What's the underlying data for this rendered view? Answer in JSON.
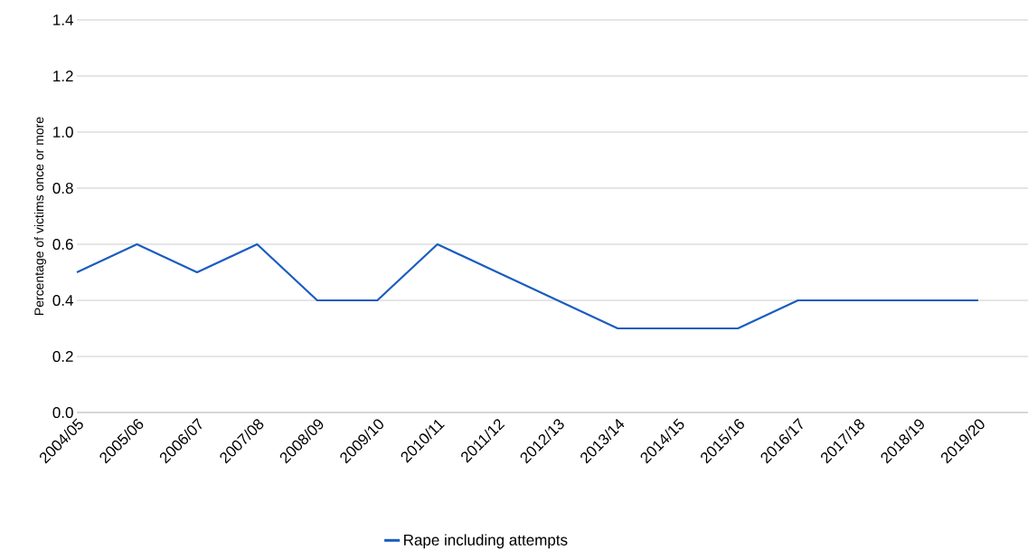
{
  "chart_data": {
    "type": "line",
    "ylabel": "Percentage of victims once or more",
    "categories": [
      "2004/05",
      "2005/06",
      "2006/07",
      "2007/08",
      "2008/09",
      "2009/10",
      "2010/11",
      "2011/12",
      "2012/13",
      "2013/14",
      "2014/15",
      "2015/16",
      "2016/17",
      "2017/18",
      "2018/19",
      "2019/20"
    ],
    "series": [
      {
        "name": "Rape including attempts",
        "color": "#1a5cc0",
        "values": [
          0.5,
          0.6,
          0.5,
          0.6,
          0.4,
          0.4,
          0.6,
          0.5,
          0.4,
          0.3,
          0.3,
          0.3,
          0.4,
          0.4,
          0.4,
          0.4
        ]
      }
    ],
    "ylim": [
      0,
      1.4
    ],
    "yticks": [
      {
        "value": 0,
        "label": "0.0"
      },
      {
        "value": 0.2,
        "label": "0.2"
      },
      {
        "value": 0.4,
        "label": "0.4"
      },
      {
        "value": 0.6,
        "label": "0.6"
      },
      {
        "value": 0.8,
        "label": "0.8"
      },
      {
        "value": 1.0,
        "label": "1.0"
      },
      {
        "value": 1.2,
        "label": "1.2"
      },
      {
        "value": 1.4,
        "label": "1.4"
      }
    ],
    "grid": "y",
    "legend": "bottom",
    "marker": "none",
    "line_style": "solid"
  }
}
